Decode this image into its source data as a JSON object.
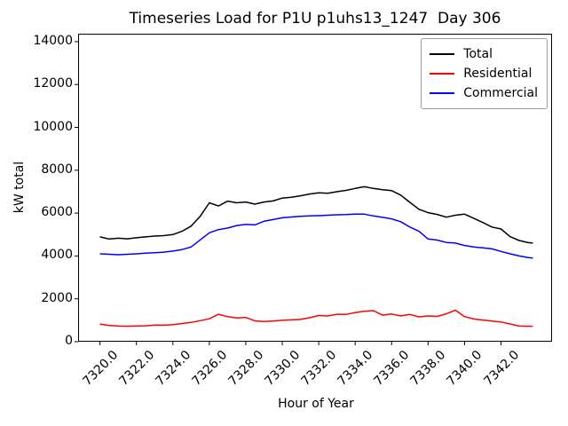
{
  "title": "Timeseries Load for P1U p1uhs13_1247  Day 306",
  "chart_data": {
    "type": "line",
    "title": "Timeseries Load for P1U p1uhs13_1247  Day 306",
    "xlabel": "Hour of Year",
    "ylabel": "kW total",
    "xlim": [
      7318.8,
      7344.8
    ],
    "ylim": [
      0,
      14370
    ],
    "grid": false,
    "legend_position": "upper right",
    "xtick_values": [
      7320,
      7322,
      7324,
      7326,
      7328,
      7330,
      7332,
      7334,
      7336,
      7338,
      7340,
      7342
    ],
    "xtick_labels": [
      "7320.0",
      "7322.0",
      "7324.0",
      "7326.0",
      "7328.0",
      "7330.0",
      "7332.0",
      "7334.0",
      "7336.0",
      "7338.0",
      "7340.0",
      "7342.0"
    ],
    "ytick_values": [
      0,
      2000,
      4000,
      6000,
      8000,
      10000,
      12000,
      14000
    ],
    "ytick_labels": [
      "0",
      "2000",
      "4000",
      "6000",
      "8000",
      "10000",
      "12000",
      "14000"
    ],
    "x": [
      7320,
      7320.5,
      7321,
      7321.5,
      7322,
      7322.5,
      7323,
      7323.5,
      7324,
      7324.5,
      7325,
      7325.5,
      7326,
      7326.5,
      7327,
      7327.5,
      7328,
      7328.5,
      7329,
      7329.5,
      7330,
      7330.5,
      7331,
      7331.5,
      7332,
      7332.5,
      7333,
      7333.5,
      7334,
      7334.5,
      7335,
      7335.5,
      7336,
      7336.5,
      7337,
      7337.5,
      7338,
      7338.5,
      7339,
      7339.5,
      7340,
      7340.5,
      7341,
      7341.5,
      7342,
      7342.5,
      7343,
      7343.5,
      7343.75
    ],
    "series": [
      {
        "name": "Total",
        "color": "#000000",
        "values": [
          4890,
          4790,
          4830,
          4800,
          4850,
          4890,
          4930,
          4950,
          5000,
          5150,
          5390,
          5850,
          6480,
          6330,
          6560,
          6480,
          6520,
          6420,
          6520,
          6570,
          6700,
          6740,
          6810,
          6890,
          6950,
          6930,
          7000,
          7060,
          7150,
          7230,
          7150,
          7090,
          7050,
          6840,
          6500,
          6180,
          6020,
          5940,
          5810,
          5900,
          5950,
          5760,
          5560,
          5350,
          5260,
          4900,
          4720,
          4620,
          4600
        ]
      },
      {
        "name": "Residential",
        "color": "#ff0000",
        "values": [
          820,
          760,
          730,
          720,
          730,
          740,
          780,
          770,
          790,
          850,
          900,
          980,
          1070,
          1280,
          1170,
          1110,
          1130,
          970,
          940,
          960,
          1000,
          1020,
          1040,
          1120,
          1220,
          1200,
          1280,
          1270,
          1360,
          1420,
          1450,
          1240,
          1290,
          1200,
          1270,
          1160,
          1200,
          1180,
          1300,
          1470,
          1170,
          1060,
          1010,
          960,
          920,
          830,
          730,
          720,
          720
        ]
      },
      {
        "name": "Commercial",
        "color": "#0000ff",
        "values": [
          4100,
          4080,
          4060,
          4080,
          4100,
          4130,
          4150,
          4180,
          4230,
          4300,
          4420,
          4750,
          5080,
          5230,
          5300,
          5420,
          5470,
          5450,
          5620,
          5700,
          5780,
          5820,
          5850,
          5870,
          5880,
          5900,
          5920,
          5930,
          5950,
          5950,
          5870,
          5800,
          5730,
          5600,
          5350,
          5150,
          4790,
          4740,
          4630,
          4600,
          4490,
          4420,
          4380,
          4330,
          4210,
          4100,
          4000,
          3920,
          3900
        ]
      }
    ]
  }
}
